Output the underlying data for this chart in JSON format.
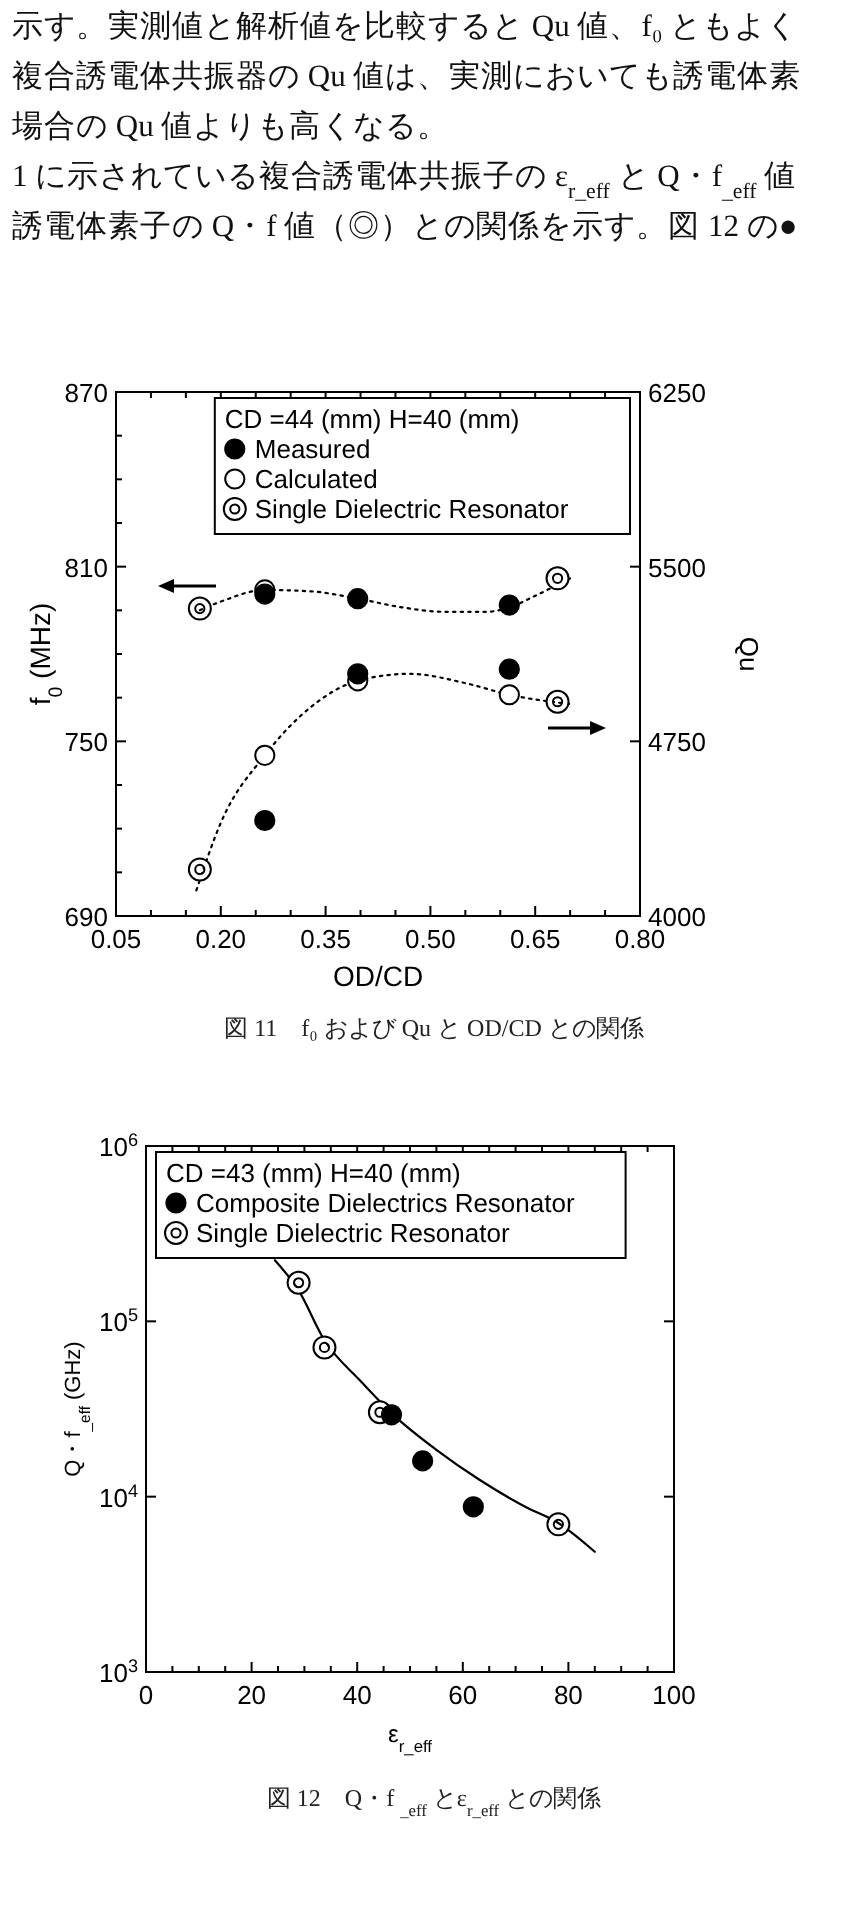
{
  "chart_data": [
    {
      "type": "scatter",
      "xlabel": "OD/CD",
      "ylabel": "f$_{0}$ (MHz)",
      "y2label": "Qu",
      "legend_title": "CD  =44 (mm) H=40 (mm)",
      "legend": "top right",
      "annotations": [
        "示す。実測値と解析値を比較すると Qu 値、f₀ ともよく",
        "複合誘電体共振器の Qu 値は、実測においても誘電体素",
        "場合の Qu 値よりも高くなる。",
        "1 に示されている複合誘電体共振子の ε$_{r_eff}$ と Q・f$_{_eff}$ 値",
        "誘電体素子の Q・f 値（◎）との関係を示す。図 12 の●",
        "図 11　f₀ および Qu と OD/CD との関係"
      ],
      "xlim": [
        0.05,
        0.8
      ],
      "xticks": [
        0.05,
        {
          "value": 0.1,
          "label": null
        },
        {
          "value": 0.15,
          "label": null
        },
        {
          "value": 0.2,
          "label": "0.20"
        },
        {
          "value": 0.25,
          "label": null
        },
        {
          "value": 0.3,
          "label": null
        },
        0.35,
        {
          "value": 0.4,
          "label": null
        },
        {
          "value": 0.45,
          "label": null
        },
        {
          "value": 0.5,
          "label": "0.50"
        },
        {
          "value": 0.55,
          "label": null
        },
        {
          "value": 0.6,
          "label": null
        },
        0.65,
        {
          "value": 0.7,
          "label": null
        },
        {
          "value": 0.75,
          "label": null
        },
        {
          "value": 0.8,
          "label": "0.80"
        }
      ],
      "ylim": [
        690,
        870
      ],
      "yticks": [
        690,
        {
          "value": 705,
          "label": null
        },
        {
          "value": 720,
          "label": null
        },
        {
          "value": 735,
          "label": null
        },
        750,
        {
          "value": 765,
          "label": null
        },
        {
          "value": 780,
          "label": null
        },
        {
          "value": 795,
          "label": null
        },
        810,
        {
          "value": 825,
          "label": null
        },
        {
          "value": 840,
          "label": null
        },
        {
          "value": 855,
          "label": null
        },
        870
      ],
      "y2lim": [
        4000,
        6250
      ],
      "y2ticks": [
        4000,
        4750,
        5500,
        6250
      ],
      "series": [
        {
          "name": "Measured",
          "color": "#000000",
          "marker": "circle",
          "x": [
            0.263,
            0.396,
            0.613
          ],
          "values": [
            800.6,
            799,
            796.8
          ]
        },
        {
          "name": "Calculated",
          "color": "#ffffff",
          "marker": "circle",
          "x": [
            0.263
          ],
          "values": [
            802
          ]
        },
        {
          "name": "Single Dielectric Resonator",
          "color": "#ffffff",
          "x": [
            0.17,
            0.682
          ],
          "values": [
            795.6,
            806
          ]
        },
        {
          "type": "line",
          "color": "#000000",
          "line_style": "dotted",
          "marker": "none",
          "x": [
            0.16,
            0.2,
            0.263,
            0.33,
            0.396,
            0.46,
            0.52,
            0.58,
            0.613,
            0.65,
            0.7
          ],
          "values": [
            794,
            798,
            802,
            801.5,
            799,
            796,
            794.5,
            794.5,
            796,
            800,
            806
          ]
        },
        {
          "axis": "y2",
          "color": "#000000",
          "marker": "circle",
          "x": [
            0.263,
            0.396,
            0.613
          ],
          "values": [
            4410,
            5040,
            5060
          ]
        },
        {
          "axis": "y2",
          "color": "#ffffff",
          "marker": "circle",
          "x": [
            0.263,
            0.396,
            0.613
          ],
          "values": [
            4690,
            5010,
            4950
          ]
        },
        {
          "axis": "y2",
          "color": "#ffffff",
          "x": [
            0.17,
            0.682
          ],
          "values": [
            4200,
            4920
          ]
        },
        {
          "type": "line",
          "axis": "y2",
          "color": "#000000",
          "line_style": "dotted",
          "marker": "none",
          "x": [
            0.165,
            0.2,
            0.263,
            0.33,
            0.396,
            0.47,
            0.55,
            0.613,
            0.7
          ],
          "values": [
            4110,
            4400,
            4690,
            4900,
            5010,
            5040,
            5000,
            4950,
            4910
          ]
        }
      ]
    },
    {
      "type": "scatter",
      "xlabel": "ε$_{r_eff}$",
      "ylabel": "Q・f$_{_eff}$ (GHz)",
      "legend_title": "CD =43 (mm) H=40 (mm)",
      "legend": "top left",
      "log": "y",
      "annotations": [
        "図 12　Q・f $_{_eff}$ とε$_{r_eff}$ との関係"
      ],
      "xlim": [
        0,
        100
      ],
      "xticks": [
        0,
        {
          "value": 5,
          "label": null
        },
        {
          "value": 10,
          "label": null
        },
        {
          "value": 15,
          "label": null
        },
        20,
        {
          "value": 25,
          "label": null
        },
        {
          "value": 30,
          "label": null
        },
        {
          "value": 35,
          "label": null
        },
        40,
        {
          "value": 45,
          "label": null
        },
        {
          "value": 50,
          "label": null
        },
        {
          "value": 55,
          "label": null
        },
        60,
        {
          "value": 65,
          "label": null
        },
        {
          "value": 70,
          "label": null
        },
        {
          "value": 75,
          "label": null
        },
        80,
        {
          "value": 85,
          "label": null
        },
        {
          "value": 90,
          "label": null
        },
        {
          "value": 95,
          "label": null
        },
        100
      ],
      "ylim": [
        1000,
        1000000
      ],
      "yticks": [
        {
          "value": 1000,
          "label": "10$^{3}$"
        },
        {
          "value": 10000,
          "label": "10$^{4}$"
        },
        {
          "value": 100000,
          "label": "10$^{5}$"
        },
        {
          "value": 1000000,
          "label": "10$^{6}$"
        }
      ],
      "series": [
        {
          "name": "Composite Dielectrics Resonator",
          "color": "#000000",
          "marker": "circle",
          "x": [
            46.5,
            52.4,
            62
          ],
          "values": [
            29300,
            16000,
            8750
          ]
        },
        {
          "name": "Single Dielectric Resonator",
          "color": "#ffffff",
          "x": [
            28.9,
            33.8,
            44.3,
            78.1
          ],
          "values": [
            166000,
            71000,
            30300,
            6950
          ]
        },
        {
          "type": "line",
          "color": "#000000",
          "line_style": "solid",
          "marker": "none",
          "x": [
            24.4,
            28.9,
            33.8,
            40.5,
            47,
            55,
            63.3,
            72,
            78,
            85
          ],
          "values": [
            223000,
            150000,
            78000,
            46100,
            29000,
            18500,
            12400,
            8700,
            7100,
            4850
          ]
        }
      ]
    }
  ]
}
